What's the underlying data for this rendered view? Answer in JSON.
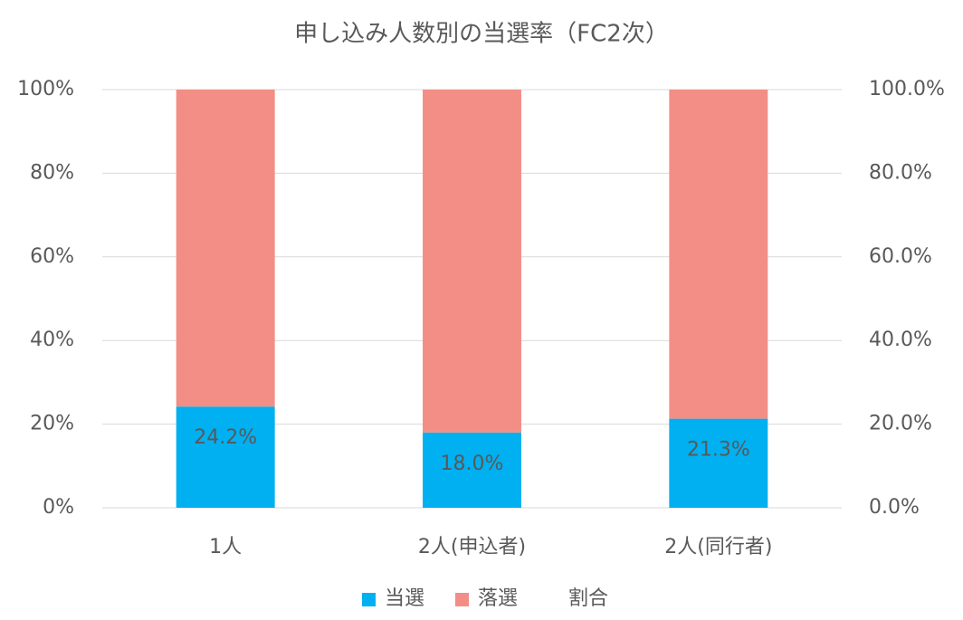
{
  "chart_data": {
    "type": "bar",
    "stacked": true,
    "title": "申し込み人数別の当選率（FC2次）",
    "categories": [
      "1人",
      "2人(申込者)",
      "2人(同行者)"
    ],
    "series": [
      {
        "name": "当選",
        "color": "#00b0f0",
        "values": [
          24.2,
          18.0,
          21.3
        ]
      },
      {
        "name": "落選",
        "color": "#f28e86",
        "values": [
          75.8,
          82.0,
          78.7
        ]
      },
      {
        "name": "割合",
        "type": "line",
        "axis": "y2",
        "values": [
          24.2,
          18.0,
          21.3
        ],
        "value_labels": [
          "24.2%",
          "18.0%",
          "21.3%"
        ]
      }
    ],
    "ylim": [
      0,
      100
    ],
    "yticks": [
      {
        "value": 0,
        "label": "0%"
      },
      {
        "value": 20,
        "label": "20%"
      },
      {
        "value": 40,
        "label": "40%"
      },
      {
        "value": 60,
        "label": "60%"
      },
      {
        "value": 80,
        "label": "80%"
      },
      {
        "value": 100,
        "label": "100%"
      }
    ],
    "y2lim": [
      0,
      100
    ],
    "y2ticks": [
      {
        "value": 0,
        "label": "0.0%"
      },
      {
        "value": 20,
        "label": "20.0%"
      },
      {
        "value": 40,
        "label": "40.0%"
      },
      {
        "value": 60,
        "label": "60.0%"
      },
      {
        "value": 80,
        "label": "80.0%"
      },
      {
        "value": 100,
        "label": "100.0%"
      }
    ],
    "grid": true,
    "legend": "bottom"
  }
}
